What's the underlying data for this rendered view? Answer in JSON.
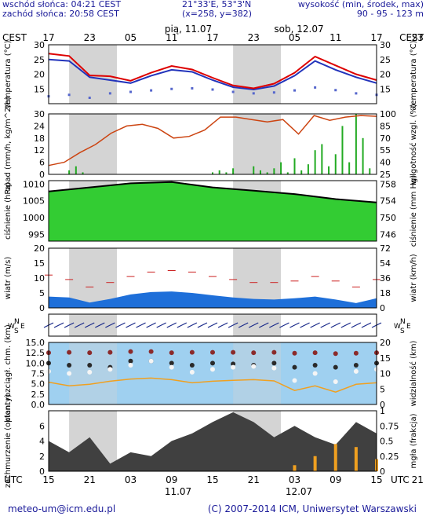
{
  "header": {
    "sunrise": "wschód słońca: 04:21 CEST",
    "sunset": "zachód słońca: 20:58 CEST",
    "coords": "21°33'E, 53°3'N",
    "grid": "(x=258, y=382)",
    "altitude_label": "wysokość (min, środek, max)",
    "altitude_values": "90 - 95 - 123 m"
  },
  "top_axis": {
    "tz_left": "CEST",
    "tz_right": "CEST",
    "day1": "pią, 11.07",
    "day2": "sob, 12.07",
    "hours": [
      "17",
      "23",
      "05",
      "11",
      "17",
      "23",
      "05",
      "11",
      "17",
      "23"
    ]
  },
  "bottom_axis": {
    "tz_left": "UTC",
    "tz_right": "UTC",
    "hours": [
      "15",
      "21",
      "03",
      "09",
      "15",
      "21",
      "03",
      "09",
      "15",
      "21"
    ],
    "date1": "11.07",
    "date2": "12.07"
  },
  "footer": {
    "email": "meteo-um@icm.edu.pl",
    "copyright": "(C) 2007-2014 ICM, Uniwersytet Warszawski"
  },
  "colors": {
    "panel_bg": "#ffffff",
    "night_band": "#d4d4d4",
    "temperature": "#dd0000",
    "dew_point": "#2233bb",
    "pressure_fill": "#33cc33",
    "humidity": "#cc4411",
    "precip": "#22aa22",
    "wind_band": "#1e6fd9",
    "visibility_bg": "#9fd0f0",
    "cloud_dark": "#404040",
    "fog": "#f0a020"
  },
  "chart_data": [
    {
      "type": "line",
      "panel": "temperature",
      "ylabel_left": "temperatura (°C)",
      "ylabel_right": "temperatura (°C)",
      "ylim": [
        10,
        30
      ],
      "yticks": [
        15,
        20,
        25,
        30
      ],
      "x_hours_from_start": [
        0,
        3,
        6,
        9,
        12,
        15,
        18,
        21,
        24,
        27,
        30,
        33,
        36,
        39,
        42,
        45,
        48
      ],
      "series": [
        {
          "values": [
            27.0,
            26.2,
            19.6,
            19.3,
            17.8,
            20.5,
            22.8,
            21.6,
            18.8,
            16.2,
            15.2,
            16.8,
            20.5,
            26.0,
            23.0,
            20.0,
            18.0
          ]
        },
        {
          "values": [
            25.0,
            24.5,
            19.0,
            18.0,
            17.0,
            19.5,
            21.5,
            20.8,
            18.0,
            15.6,
            14.8,
            16.0,
            19.5,
            24.5,
            21.5,
            19.0,
            17.0
          ]
        },
        {
          "values": [
            12.5,
            13.0,
            12.0,
            13.5,
            14.0,
            14.5,
            15.0,
            15.2,
            14.8,
            14.0,
            13.5,
            13.8,
            14.5,
            15.5,
            14.6,
            13.5,
            13.0
          ]
        }
      ]
    },
    {
      "type": "bar",
      "panel": "precipitation",
      "ylabel_left": "opad (mm/h, kg/m^2/h)",
      "ylabel_right": "wilgotność wzgl. (%)",
      "ylim": [
        0,
        30
      ],
      "yticks": [
        0,
        6,
        12,
        18,
        24,
        30
      ],
      "y2lim": [
        25,
        100
      ],
      "y2ticks": [
        25,
        40,
        55,
        70,
        85,
        100
      ],
      "x_hours_from_start": [
        3,
        4,
        5,
        24,
        25,
        26,
        27,
        30,
        31,
        32,
        33,
        34,
        35,
        36,
        37,
        38,
        39,
        40,
        41,
        42,
        43,
        44,
        45,
        46,
        47
      ],
      "values": [
        2,
        4,
        1,
        1,
        2,
        1,
        3,
        4,
        2,
        1,
        3,
        6,
        1,
        8,
        2,
        5,
        12,
        15,
        4,
        10,
        24,
        6,
        30,
        18,
        3
      ],
      "series": [
        {
          "values": [
            36,
            40,
            52,
            62,
            76,
            85,
            87,
            82,
            70,
            72,
            80,
            96,
            96,
            93,
            90,
            93,
            75,
            98,
            92,
            96,
            98,
            97
          ]
        }
      ]
    },
    {
      "type": "area",
      "panel": "pressure",
      "ylabel_left": "ciśnienie (hPa)",
      "ylabel_right": "ciśnienie (mm Hg)",
      "ylim": [
        993,
        1011
      ],
      "yticks": [
        995,
        1000,
        1005,
        1010
      ],
      "y2ticks": [
        746,
        750,
        754,
        758
      ],
      "x_hours_from_start": [
        0,
        6,
        12,
        18,
        24,
        30,
        36,
        42,
        48
      ],
      "values": [
        1007.8,
        1009.0,
        1010.2,
        1010.6,
        1009.0,
        1008.0,
        1007.0,
        1005.5,
        1004.5
      ]
    },
    {
      "type": "line",
      "panel": "wind",
      "ylabel_left": "wiatr (m/s)",
      "ylabel_right": "wiatr (km/h)",
      "ylim": [
        0,
        20
      ],
      "yticks": [
        0,
        5,
        10,
        15,
        20
      ],
      "y2ticks": [
        0,
        18,
        36,
        54,
        72
      ],
      "x_hours_from_start": [
        0,
        3,
        6,
        9,
        12,
        15,
        18,
        21,
        24,
        27,
        30,
        33,
        36,
        39,
        42,
        45,
        48
      ],
      "series": [
        {
          "values": [
            3.8,
            3.5,
            1.8,
            3.0,
            4.5,
            5.3,
            5.5,
            5.0,
            4.2,
            3.5,
            3.0,
            2.8,
            3.2,
            3.8,
            2.8,
            1.6,
            3.2
          ]
        },
        {
          "values": [
            11.0,
            9.5,
            7.0,
            8.5,
            10.5,
            12.0,
            12.5,
            12.0,
            10.5,
            9.5,
            8.5,
            8.5,
            9.0,
            10.5,
            9.0,
            7.0,
            9.5
          ]
        }
      ]
    },
    {
      "type": "scatter",
      "panel": "visibility",
      "ylabel_left": "pion. rozciągł. chm. (km)",
      "ylabel_right": "widzialność (km)",
      "ylim": [
        0,
        15
      ],
      "yticks": [
        0.0,
        2.5,
        5.0,
        7.5,
        10.0,
        12.5,
        15.0
      ],
      "y2lim": [
        0,
        20
      ],
      "y2ticks": [
        0,
        5,
        10,
        15,
        20
      ],
      "x_hours_from_start": [
        0,
        3,
        6,
        9,
        12,
        15,
        18,
        21,
        24,
        27,
        30,
        33,
        36,
        39,
        42,
        45,
        48
      ],
      "series": [
        {
          "values": [
            12.5,
            12.6,
            12.5,
            12.6,
            12.8,
            12.8,
            12.5,
            12.6,
            12.6,
            12.6,
            12.5,
            12.6,
            12.4,
            12.5,
            12.3,
            12.4,
            12.5
          ]
        },
        {
          "values": [
            10.0,
            9.5,
            9.5,
            9.0,
            10.5,
            10.5,
            10.0,
            9.5,
            10.0,
            9.8,
            9.5,
            10.0,
            9.0,
            9.5,
            9.0,
            9.5,
            10.0
          ]
        },
        {
          "values": [
            8.0,
            7.5,
            7.8,
            8.5,
            9.5,
            10.5,
            9.0,
            7.8,
            8.5,
            9.0,
            9.2,
            8.8,
            5.8,
            7.5,
            5.5,
            8.0,
            8.5
          ]
        }
      ]
    },
    {
      "type": "area",
      "panel": "clouds",
      "ylabel_left": "zachmurzenie (oktanty)",
      "ylabel_right": "mgła (frakcja)",
      "ylim": [
        0,
        8
      ],
      "yticks": [
        0,
        2,
        4,
        6
      ],
      "y2lim": [
        0,
        1
      ],
      "y2ticks": [
        0,
        0.25,
        0.5,
        0.75,
        1
      ],
      "x_hours_from_start": [
        0,
        3,
        6,
        9,
        12,
        15,
        18,
        21,
        24,
        27,
        30,
        33,
        36,
        39,
        42,
        45,
        48
      ],
      "values": [
        4.0,
        2.5,
        4.5,
        1.0,
        2.5,
        2.0,
        4.0,
        5.0,
        6.5,
        7.8,
        6.5,
        4.5,
        6.0,
        4.5,
        3.5,
        6.5,
        5.0
      ],
      "series": [
        {
          "values": [
            0,
            0,
            0,
            0,
            0,
            0,
            0,
            0,
            0,
            0,
            0,
            0,
            0.1,
            0.25,
            0.45,
            0.4,
            0.2
          ]
        }
      ]
    }
  ]
}
